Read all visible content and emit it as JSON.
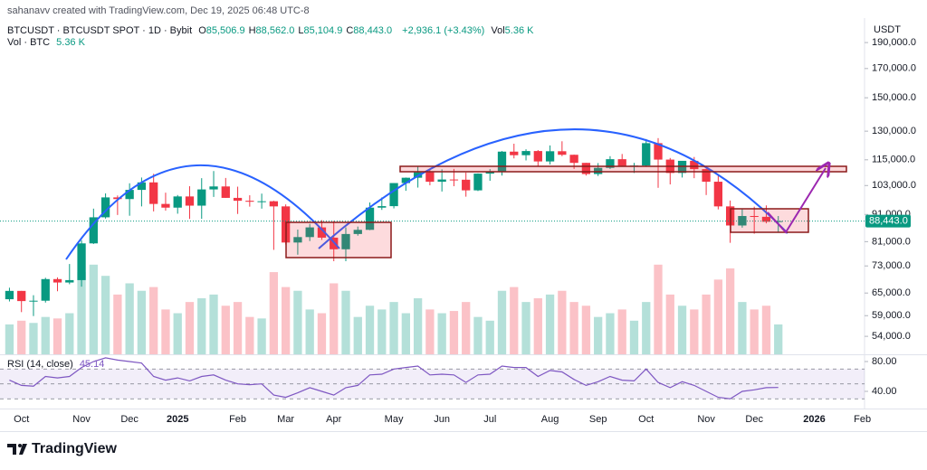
{
  "header": {
    "attribution": "sahanavv created with TradingView.com, Dec 19, 2025 06:48 UTC-8",
    "symbol": "BTCUSDT · BTCUSDT SPOT · 1D · Bybit",
    "ohlc": [
      {
        "label": "O",
        "value": "85,506.9"
      },
      {
        "label": "H",
        "value": "88,562.0"
      },
      {
        "label": "L",
        "value": "85,104.9"
      },
      {
        "label": "C",
        "value": "88,443.0"
      }
    ],
    "change": "+2,936.1 (+3.43%)",
    "vol_label": "Vol",
    "vol_value": "5.36 K"
  },
  "volume_legend": {
    "label": "Vol · BTC",
    "value": "5.36 K"
  },
  "footer": {
    "brand": "TradingView"
  },
  "chart_data": {
    "type": "candlestick",
    "y_unit": "USDT",
    "log_scale": true,
    "grid": false,
    "up_color": "#089981",
    "down_color": "#f23645",
    "categories": [
      null,
      "Oct",
      null,
      null,
      null,
      null,
      "Nov",
      null,
      null,
      null,
      "Dec",
      null,
      null,
      null,
      "2025",
      null,
      null,
      null,
      null,
      "Feb",
      null,
      null,
      null,
      "Mar",
      null,
      null,
      null,
      "Apr",
      null,
      null,
      null,
      null,
      "May",
      null,
      null,
      null,
      "Jun",
      null,
      null,
      null,
      "Jul",
      null,
      null,
      null,
      null,
      "Aug",
      null,
      null,
      null,
      "Sep",
      null,
      null,
      null,
      "Oct",
      null,
      null,
      null,
      null,
      "Nov",
      null,
      null,
      null,
      "Dec",
      null,
      null,
      null,
      null,
      "2026",
      null,
      null,
      null,
      "Feb"
    ],
    "open": [
      63300,
      65600,
      62800,
      62900,
      69000,
      68000,
      68700,
      80400,
      89900,
      97900,
      97200,
      101100,
      104400,
      95200,
      93700,
      98300,
      94500,
      101300,
      102600,
      97700,
      96500,
      96100,
      96300,
      94200,
      80700,
      82600,
      86100,
      82400,
      78400,
      83700,
      85200,
      93700,
      94300,
      104100,
      106500,
      109000,
      104700,
      105700,
      105600,
      100900,
      108400,
      109200,
      119100,
      117300,
      119400,
      114200,
      119300,
      117500,
      113500,
      108200,
      111100,
      115300,
      112100,
      112200,
      123500,
      115100,
      108700,
      114500,
      110500,
      104700,
      94200,
      86800,
      90400,
      90100,
      88200,
      null,
      null,
      null,
      null,
      null,
      null,
      null
    ],
    "high": [
      66500,
      65600,
      64400,
      69400,
      69500,
      73600,
      81500,
      93300,
      99600,
      98700,
      104000,
      106600,
      108300,
      99900,
      98900,
      102700,
      106300,
      109600,
      106400,
      102500,
      98800,
      99500,
      96500,
      95000,
      85300,
      87400,
      88800,
      88500,
      86100,
      86400,
      95800,
      97900,
      104100,
      106600,
      112000,
      110700,
      110400,
      110600,
      108900,
      108500,
      110500,
      119400,
      123200,
      120300,
      119900,
      122300,
      124500,
      117600,
      113500,
      113400,
      116800,
      117900,
      113500,
      125700,
      126200,
      115900,
      113900,
      116400,
      110800,
      107500,
      96600,
      93100,
      94100,
      94600,
      90400,
      null,
      null,
      null,
      null,
      null,
      null,
      null
    ],
    "low": [
      62700,
      59900,
      58900,
      62400,
      65500,
      67500,
      66800,
      80200,
      89400,
      90800,
      90500,
      94200,
      92200,
      92500,
      91300,
      89300,
      89300,
      98100,
      97700,
      91200,
      94100,
      93300,
      78200,
      80000,
      76600,
      81200,
      81600,
      74500,
      74500,
      83100,
      85100,
      92800,
      93400,
      100700,
      102100,
      103100,
      100400,
      102700,
      98200,
      100600,
      105100,
      107500,
      115700,
      114700,
      111900,
      112700,
      116800,
      110600,
      107500,
      107300,
      110600,
      112000,
      108700,
      111600,
      102000,
      103500,
      106600,
      106300,
      98900,
      93000,
      80600,
      86000,
      83800,
      87600,
      84400,
      null,
      null,
      null,
      null,
      null,
      null,
      null
    ],
    "close": [
      65600,
      62800,
      62900,
      69000,
      68000,
      68700,
      80400,
      89900,
      97900,
      97200,
      101100,
      104400,
      95200,
      93700,
      98300,
      94500,
      101300,
      102600,
      97700,
      96500,
      96100,
      96300,
      94200,
      80700,
      82600,
      86100,
      82400,
      78400,
      83700,
      85200,
      93700,
      94300,
      104100,
      106500,
      109000,
      104700,
      105700,
      105600,
      100900,
      108400,
      109200,
      119100,
      117300,
      119400,
      114200,
      119300,
      117500,
      113500,
      108200,
      111100,
      115300,
      112100,
      112200,
      123500,
      115100,
      108700,
      114500,
      110500,
      104700,
      94200,
      86800,
      90400,
      90100,
      88200,
      88443,
      null,
      null,
      null,
      null,
      null,
      null,
      null
    ],
    "ylim": [
      50000,
      211000
    ],
    "yticks": [
      {
        "value": 190000,
        "label": "190,000.0"
      },
      {
        "value": 170000,
        "label": "170,000.0"
      },
      {
        "value": 150000,
        "label": "150,000.0"
      },
      {
        "value": 130000,
        "label": "130,000.0"
      },
      {
        "value": 115000,
        "label": "115,000.0"
      },
      {
        "value": 103000,
        "label": "103,000.0"
      },
      {
        "value": 91000,
        "label": "91,000.0"
      },
      {
        "value": 81000,
        "label": "81,000.0"
      },
      {
        "value": 73000,
        "label": "73,000.0"
      },
      {
        "value": 65000,
        "label": "65,000.0"
      },
      {
        "value": 59000,
        "label": "59,000.0"
      },
      {
        "value": 54000,
        "label": "54,000.0"
      }
    ],
    "last_price": {
      "value": 88443,
      "label": "88,443.0"
    },
    "volume": {
      "ylim": [
        0,
        450
      ],
      "values": [
        40,
        45,
        42,
        50,
        48,
        55,
        110,
        120,
        105,
        80,
        95,
        85,
        90,
        60,
        55,
        70,
        75,
        80,
        65,
        70,
        50,
        48,
        110,
        90,
        85,
        60,
        55,
        95,
        85,
        50,
        65,
        60,
        70,
        55,
        75,
        60,
        55,
        58,
        70,
        50,
        45,
        85,
        90,
        70,
        75,
        80,
        85,
        70,
        65,
        50,
        55,
        60,
        45,
        70,
        120,
        80,
        65,
        60,
        80,
        100,
        115,
        70,
        60,
        65,
        40,
        null,
        null,
        null,
        null,
        null,
        null,
        null
      ]
    },
    "rsi": {
      "name": "RSI (14, close)",
      "color": "#7e57c2",
      "ylim": [
        23,
        88.5
      ],
      "yticks": [
        {
          "value": 80,
          "label": "80.00"
        },
        {
          "value": 40,
          "label": "40.00"
        }
      ],
      "levels": [
        70,
        50,
        30
      ],
      "values": [
        55,
        48,
        47,
        60,
        58,
        60,
        72,
        80,
        85,
        82,
        80,
        78,
        60,
        55,
        58,
        54,
        60,
        62,
        55,
        50,
        49,
        50,
        35,
        32,
        38,
        45,
        40,
        35,
        45,
        48,
        62,
        63,
        70,
        72,
        74,
        62,
        63,
        62,
        52,
        62,
        63,
        74,
        72,
        72,
        60,
        68,
        66,
        56,
        48,
        53,
        60,
        55,
        54,
        70,
        52,
        45,
        53,
        48,
        40,
        32,
        30,
        40,
        42,
        45,
        45.14,
        null,
        null,
        null,
        null,
        null,
        null,
        null
      ]
    }
  }
}
